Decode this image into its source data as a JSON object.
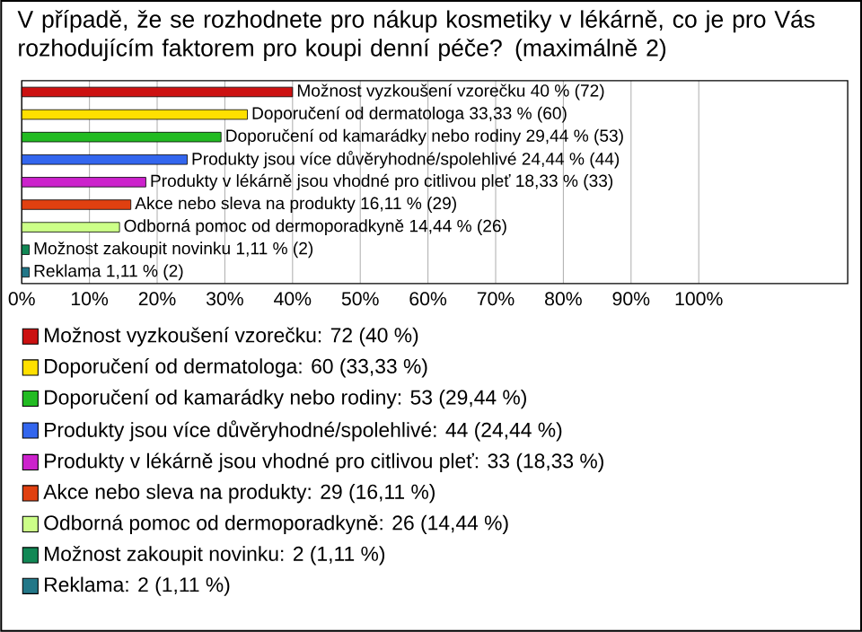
{
  "chart_data": {
    "type": "bar",
    "orientation": "horizontal",
    "title": "V případě, že se rozhodnete pro nákup kosmetiky v lékárně, co je pro Vás rozhodujícím faktorem pro koupi denní péče? (maximálně 2)",
    "categories": [
      null,
      null,
      null,
      null,
      null,
      null,
      null,
      null,
      null
    ],
    "series": [
      {
        "name": "Možnost vyzkoušení vzorečku: 72 (40 %)",
        "color": "#cc1111",
        "values": [
          40,
          null,
          null,
          null,
          null,
          null,
          null,
          null,
          null
        ],
        "value_labels": [
          "Možnost vyzkoušení vzorečku 40 % (72)",
          null,
          null,
          null,
          null,
          null,
          null,
          null,
          null
        ]
      },
      {
        "name": "Doporučení od dermatologa: 60 (33,33 %)",
        "color": "#ffe000",
        "values": [
          null,
          33.33,
          null,
          null,
          null,
          null,
          null,
          null,
          null
        ],
        "value_labels": [
          null,
          "Doporučení od dermatologa 33,33 % (60)",
          null,
          null,
          null,
          null,
          null,
          null,
          null
        ]
      },
      {
        "name": "Doporučení od kamarádky nebo rodiny: 53 (29,44 %)",
        "color": "#22bb22",
        "values": [
          null,
          null,
          29.44,
          null,
          null,
          null,
          null,
          null,
          null
        ],
        "value_labels": [
          null,
          null,
          "Doporučení od kamarádky nebo rodiny 29,44 % (53)",
          null,
          null,
          null,
          null,
          null,
          null
        ]
      },
      {
        "name": "Produkty jsou více důvěryhodné/spolehlivé: 44 (24,44 %)",
        "color": "#3366ee",
        "values": [
          null,
          null,
          null,
          24.44,
          null,
          null,
          null,
          null,
          null
        ],
        "value_labels": [
          null,
          null,
          null,
          "Produkty jsou více důvěryhodné/spolehlivé 24,44 % (44)",
          null,
          null,
          null,
          null,
          null
        ]
      },
      {
        "name": "Produkty v lékárně jsou vhodné pro citlivou pleť: 33 (18,33 %)",
        "color": "#cc22cc",
        "values": [
          null,
          null,
          null,
          null,
          18.33,
          null,
          null,
          null,
          null
        ],
        "value_labels": [
          null,
          null,
          null,
          null,
          "Produkty v lékárně jsou vhodné pro citlivou pleť 18,33 % (33)",
          null,
          null,
          null,
          null
        ]
      },
      {
        "name": "Akce nebo sleva na produkty: 29 (16,11 %)",
        "color": "#e04010",
        "values": [
          null,
          null,
          null,
          null,
          null,
          16.11,
          null,
          null,
          null
        ],
        "value_labels": [
          null,
          null,
          null,
          null,
          null,
          "Akce nebo sleva na produkty 16,11 % (29)",
          null,
          null,
          null
        ]
      },
      {
        "name": "Odborná pomoc od dermoporadkyně: 26 (14,44 %)",
        "color": "#ccff88",
        "values": [
          null,
          null,
          null,
          null,
          null,
          null,
          14.44,
          null,
          null
        ],
        "value_labels": [
          null,
          null,
          null,
          null,
          null,
          null,
          "Odborná pomoc od dermoporadkyně 14,44 % (26)",
          null,
          null
        ]
      },
      {
        "name": "Možnost zakoupit novinku: 2 (1,11 %)",
        "color": "#118855",
        "values": [
          null,
          null,
          null,
          null,
          null,
          null,
          null,
          1.11,
          null
        ],
        "value_labels": [
          null,
          null,
          null,
          null,
          null,
          null,
          null,
          "Možnost zakoupit novinku 1,11 % (2)",
          null
        ]
      },
      {
        "name": "Reklama: 2 (1,11 %)",
        "color": "#227788",
        "values": [
          null,
          null,
          null,
          null,
          null,
          null,
          null,
          null,
          1.11
        ],
        "value_labels": [
          null,
          null,
          null,
          null,
          null,
          null,
          null,
          null,
          "Reklama 1,11 % (2)"
        ]
      }
    ],
    "xlim": [
      0,
      122
    ],
    "xticks": [
      {
        "value": 0,
        "label": "0%"
      },
      {
        "value": 10,
        "label": "10%"
      },
      {
        "value": 20,
        "label": "20%"
      },
      {
        "value": 30,
        "label": "30%"
      },
      {
        "value": 40,
        "label": "40%"
      },
      {
        "value": 50,
        "label": "50%"
      },
      {
        "value": 60,
        "label": "60%"
      },
      {
        "value": 70,
        "label": "70%"
      },
      {
        "value": 80,
        "label": "80%"
      },
      {
        "value": 90,
        "label": "90%"
      },
      {
        "value": 100,
        "label": "100%"
      }
    ],
    "grid": "x",
    "legend": "bottom"
  }
}
